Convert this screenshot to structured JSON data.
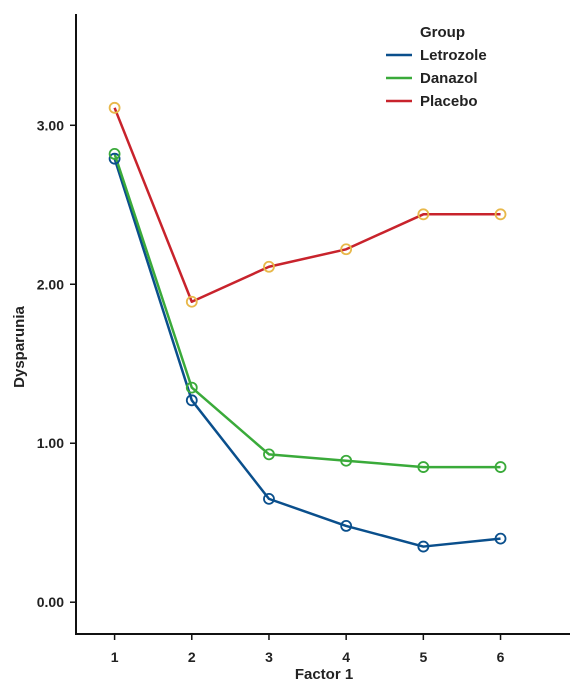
{
  "chart_data": {
    "type": "line",
    "x": [
      1,
      2,
      3,
      4,
      5,
      6
    ],
    "xticks": [
      "1",
      "2",
      "3",
      "4",
      "5",
      "6"
    ],
    "yticks": [
      "0.00",
      "1.00",
      "2.00",
      "3.00"
    ],
    "xlabel": "Factor 1",
    "ylabel": "Dysparunia",
    "xlim": [
      0.5,
      6.9
    ],
    "ylim": [
      -0.2,
      3.7
    ],
    "grid": false,
    "legend": {
      "title": "Group",
      "position": "top-right"
    },
    "series": [
      {
        "name": "Letrozole",
        "color": "#0a4f8c",
        "marker_color": "#0a4f8c",
        "values": [
          2.79,
          1.27,
          0.65,
          0.48,
          0.35,
          0.4
        ]
      },
      {
        "name": "Danazol",
        "color": "#3aaa3a",
        "marker_color": "#3aaa3a",
        "values": [
          2.82,
          1.35,
          0.93,
          0.89,
          0.85,
          0.85
        ]
      },
      {
        "name": "Placebo",
        "color": "#c8232c",
        "marker_color": "#e8b84a",
        "values": [
          3.11,
          1.89,
          2.11,
          2.22,
          2.44,
          2.44
        ]
      }
    ]
  }
}
